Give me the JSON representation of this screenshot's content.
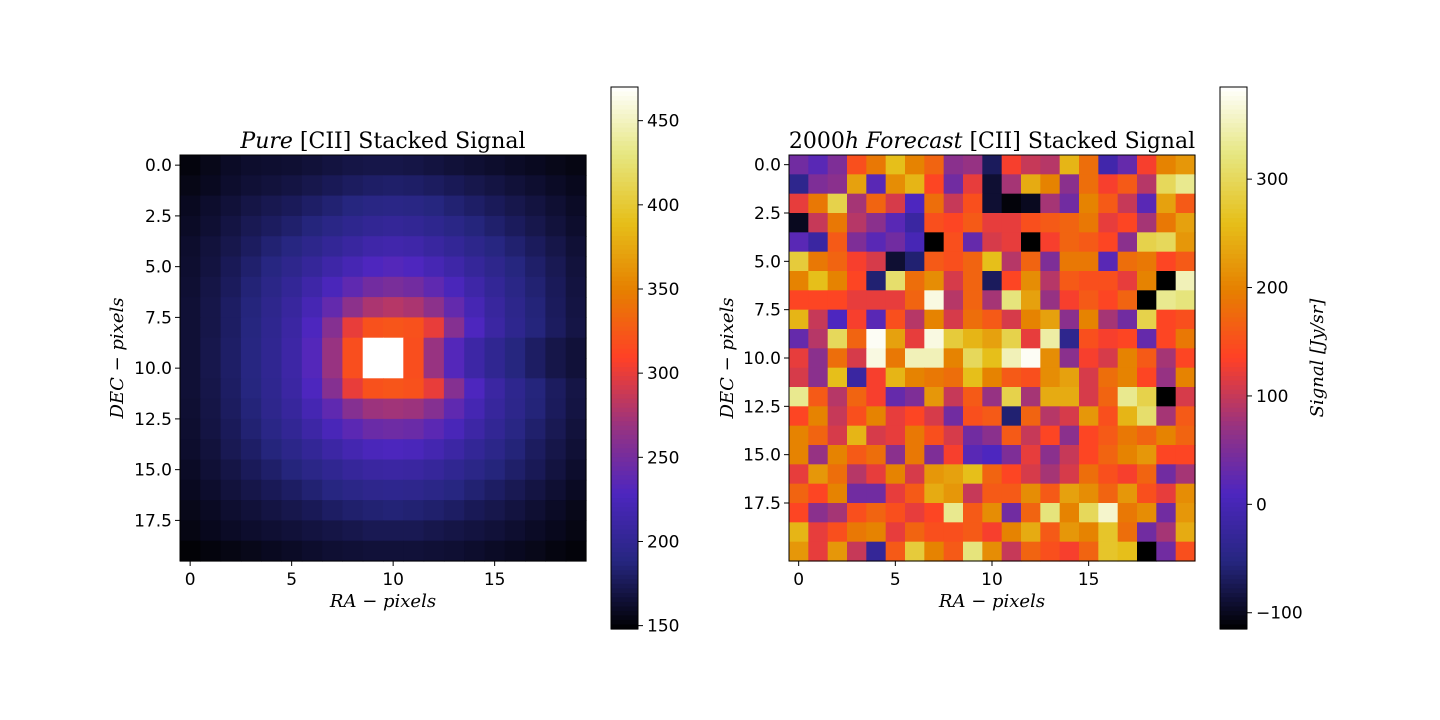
{
  "chart_data": [
    {
      "type": "heatmap",
      "title_parts": [
        {
          "text": "Pure",
          "italic": true
        },
        {
          "text": " [CII] Stacked Signal",
          "italic": false
        }
      ],
      "xlabel": "RA − pixels",
      "ylabel": "DEC − pixels",
      "colormap": "CMRmap",
      "colorbar_label": "",
      "vmin": 148,
      "vmax": 470,
      "xticks": [
        0,
        5,
        10,
        15
      ],
      "yticks": [
        0.0,
        2.5,
        5.0,
        7.5,
        10.0,
        12.5,
        15.0,
        17.5
      ],
      "colorbar_ticks": [
        150,
        200,
        250,
        300,
        350,
        400,
        450
      ],
      "grid": false,
      "values": [
        [
          152,
          156,
          160,
          162,
          163,
          164,
          166,
          168,
          170,
          171,
          171,
          170,
          168,
          166,
          164,
          162,
          160,
          158,
          156,
          154
        ],
        [
          155,
          158,
          162,
          165,
          167,
          169,
          172,
          175,
          178,
          180,
          181,
          180,
          178,
          175,
          172,
          169,
          166,
          163,
          160,
          157
        ],
        [
          158,
          162,
          166,
          170,
          173,
          176,
          180,
          184,
          188,
          191,
          192,
          191,
          188,
          184,
          180,
          176,
          172,
          168,
          164,
          160
        ],
        [
          160,
          164,
          169,
          174,
          178,
          182,
          187,
          192,
          197,
          201,
          203,
          201,
          197,
          192,
          187,
          182,
          177,
          172,
          167,
          162
        ],
        [
          162,
          167,
          172,
          178,
          184,
          189,
          195,
          202,
          208,
          214,
          216,
          214,
          208,
          202,
          195,
          189,
          183,
          177,
          171,
          165
        ],
        [
          163,
          168,
          175,
          182,
          189,
          196,
          204,
          213,
          221,
          229,
          232,
          229,
          221,
          213,
          204,
          196,
          188,
          181,
          174,
          167
        ],
        [
          164,
          170,
          177,
          185,
          193,
          202,
          213,
          225,
          238,
          248,
          252,
          248,
          238,
          225,
          213,
          202,
          192,
          184,
          176,
          168
        ],
        [
          165,
          171,
          179,
          187,
          196,
          207,
          221,
          240,
          262,
          276,
          280,
          276,
          262,
          240,
          221,
          207,
          195,
          186,
          177,
          169
        ],
        [
          165,
          171,
          179,
          188,
          198,
          210,
          228,
          258,
          300,
          320,
          322,
          320,
          300,
          258,
          228,
          210,
          197,
          187,
          178,
          170
        ],
        [
          165,
          172,
          180,
          189,
          199,
          212,
          232,
          268,
          318,
          470,
          470,
          318,
          268,
          232,
          212,
          199,
          188,
          179,
          171,
          166
        ],
        [
          165,
          172,
          180,
          189,
          199,
          212,
          232,
          268,
          318,
          470,
          470,
          318,
          268,
          232,
          212,
          199,
          188,
          179,
          171,
          166
        ],
        [
          165,
          171,
          179,
          188,
          198,
          210,
          228,
          258,
          300,
          320,
          322,
          320,
          300,
          258,
          228,
          210,
          197,
          187,
          178,
          170
        ],
        [
          164,
          170,
          178,
          186,
          196,
          206,
          220,
          238,
          258,
          270,
          272,
          270,
          258,
          238,
          220,
          206,
          195,
          186,
          177,
          169
        ],
        [
          163,
          169,
          176,
          184,
          192,
          201,
          212,
          224,
          236,
          244,
          246,
          244,
          236,
          224,
          212,
          201,
          191,
          182,
          174,
          167
        ],
        [
          162,
          167,
          174,
          180,
          187,
          194,
          202,
          211,
          219,
          225,
          227,
          225,
          219,
          211,
          202,
          194,
          186,
          178,
          171,
          165
        ],
        [
          160,
          165,
          170,
          176,
          181,
          187,
          193,
          199,
          205,
          209,
          210,
          209,
          205,
          199,
          193,
          187,
          181,
          175,
          168,
          162
        ],
        [
          158,
          162,
          167,
          171,
          175,
          179,
          184,
          189,
          193,
          196,
          197,
          196,
          193,
          189,
          184,
          179,
          174,
          169,
          164,
          159
        ],
        [
          156,
          159,
          163,
          166,
          169,
          172,
          175,
          179,
          182,
          184,
          185,
          184,
          182,
          179,
          175,
          172,
          168,
          164,
          160,
          156
        ],
        [
          154,
          157,
          160,
          162,
          164,
          166,
          168,
          170,
          172,
          174,
          174,
          174,
          172,
          170,
          168,
          166,
          163,
          160,
          157,
          154
        ],
        [
          150,
          152,
          154,
          156,
          158,
          160,
          162,
          164,
          165,
          166,
          166,
          166,
          165,
          164,
          162,
          160,
          158,
          156,
          153,
          151
        ]
      ]
    },
    {
      "type": "heatmap",
      "title_parts": [
        {
          "text": "2000",
          "italic": false
        },
        {
          "text": "h Forecast",
          "italic": true
        },
        {
          "text": " [CII] Stacked Signal",
          "italic": false
        }
      ],
      "xlabel": "RA − pixels",
      "ylabel": "DEC − pixels",
      "colormap": "CMRmap",
      "colorbar_label": "Signal [Jy/sr]",
      "vmin": -115,
      "vmax": 385,
      "xticks": [
        0,
        5,
        10,
        15
      ],
      "yticks": [
        0.0,
        2.5,
        5.0,
        7.5,
        10.0,
        12.5,
        15.0,
        17.5
      ],
      "colorbar_ticks": [
        -100,
        0,
        100,
        200,
        300
      ],
      "grid": false,
      "values": [
        [
          40,
          20,
          50,
          150,
          190,
          260,
          200,
          170,
          60,
          70,
          -70,
          130,
          100,
          90,
          250,
          180,
          -10,
          30,
          130,
          200,
          220
        ],
        [
          -40,
          50,
          60,
          230,
          20,
          210,
          250,
          140,
          40,
          120,
          -90,
          80,
          240,
          200,
          60,
          180,
          130,
          160,
          90,
          300,
          330
        ],
        [
          120,
          190,
          290,
          80,
          170,
          110,
          10,
          180,
          100,
          150,
          -90,
          -110,
          -100,
          80,
          40,
          200,
          160,
          100,
          20,
          230,
          160
        ],
        [
          -100,
          100,
          190,
          90,
          60,
          20,
          -20,
          150,
          140,
          160,
          120,
          120,
          150,
          160,
          170,
          190,
          120,
          140,
          80,
          190,
          230
        ],
        [
          20,
          -20,
          160,
          50,
          20,
          40,
          0,
          -115,
          150,
          30,
          110,
          120,
          -115,
          130,
          170,
          160,
          140,
          60,
          290,
          300,
          220
        ],
        [
          280,
          190,
          170,
          130,
          110,
          -90,
          -60,
          160,
          150,
          170,
          260,
          90,
          170,
          50,
          190,
          190,
          20,
          180,
          190,
          140,
          160
        ],
        [
          200,
          260,
          200,
          140,
          -60,
          310,
          180,
          210,
          110,
          170,
          -70,
          140,
          210,
          90,
          160,
          150,
          150,
          120,
          200,
          -115,
          350
        ],
        [
          140,
          140,
          140,
          120,
          120,
          120,
          170,
          370,
          90,
          170,
          80,
          320,
          230,
          70,
          130,
          160,
          140,
          170,
          -115,
          330,
          320
        ],
        [
          250,
          100,
          10,
          130,
          20,
          150,
          90,
          200,
          110,
          180,
          160,
          110,
          200,
          230,
          60,
          200,
          80,
          40,
          290,
          140,
          150
        ],
        [
          30,
          90,
          300,
          170,
          380,
          230,
          120,
          370,
          280,
          250,
          230,
          290,
          120,
          340,
          -40,
          150,
          130,
          140,
          30,
          140,
          190
        ],
        [
          120,
          60,
          180,
          110,
          370,
          190,
          350,
          350,
          200,
          300,
          260,
          350,
          380,
          210,
          60,
          130,
          110,
          200,
          160,
          80,
          140
        ],
        [
          110,
          60,
          260,
          -20,
          130,
          250,
          200,
          190,
          180,
          260,
          200,
          160,
          150,
          210,
          230,
          110,
          180,
          200,
          140,
          70,
          200
        ],
        [
          330,
          160,
          90,
          170,
          130,
          30,
          50,
          220,
          100,
          160,
          70,
          290,
          80,
          240,
          240,
          110,
          170,
          330,
          290,
          -115,
          110
        ],
        [
          140,
          200,
          100,
          150,
          200,
          120,
          140,
          110,
          40,
          150,
          160,
          -60,
          170,
          90,
          110,
          220,
          150,
          250,
          310,
          80,
          160
        ],
        [
          200,
          170,
          110,
          250,
          110,
          120,
          190,
          150,
          110,
          40,
          60,
          160,
          100,
          140,
          60,
          140,
          160,
          190,
          170,
          200,
          170
        ],
        [
          200,
          70,
          200,
          160,
          180,
          60,
          190,
          50,
          130,
          20,
          10,
          50,
          120,
          60,
          100,
          140,
          170,
          200,
          220,
          140,
          140
        ],
        [
          120,
          220,
          180,
          90,
          120,
          200,
          110,
          220,
          230,
          260,
          170,
          140,
          110,
          80,
          110,
          180,
          150,
          130,
          170,
          40,
          80
        ],
        [
          170,
          140,
          200,
          40,
          40,
          120,
          160,
          240,
          220,
          100,
          160,
          160,
          210,
          160,
          230,
          210,
          170,
          220,
          150,
          120,
          210
        ],
        [
          140,
          60,
          80,
          150,
          170,
          150,
          120,
          140,
          330,
          160,
          210,
          40,
          170,
          320,
          200,
          300,
          360,
          190,
          210,
          40,
          220
        ],
        [
          250,
          120,
          150,
          190,
          200,
          120,
          170,
          150,
          150,
          160,
          130,
          200,
          240,
          160,
          220,
          200,
          270,
          180,
          40,
          80,
          240
        ],
        [
          220,
          120,
          220,
          100,
          -30,
          160,
          280,
          200,
          160,
          320,
          210,
          100,
          170,
          150,
          130,
          170,
          270,
          260,
          -115,
          40,
          150
        ]
      ]
    }
  ]
}
